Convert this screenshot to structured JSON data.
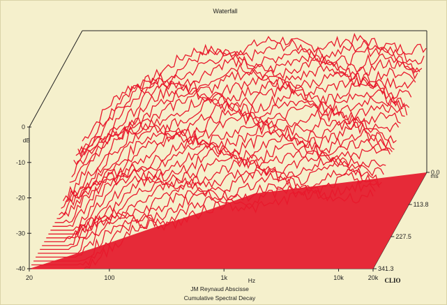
{
  "chart_data": {
    "type": "waterfall",
    "title": "Waterfall",
    "xlabel": "Hz",
    "zlabel": "ms",
    "ylabel": "dB",
    "caption_line1": "JM Reynaud Abscisse",
    "caption_line2": "Cumulative Spectral Decay",
    "brand": "CLIO",
    "x_scale": "log",
    "xlim": [
      20,
      20000
    ],
    "ylim": [
      -40,
      0
    ],
    "zlim": [
      0,
      341.3
    ],
    "y_ticks": [
      {
        "value": 0,
        "label": "0"
      },
      {
        "value": -10,
        "label": "-10"
      },
      {
        "value": -20,
        "label": "-20"
      },
      {
        "value": -30,
        "label": "-30"
      },
      {
        "value": -40,
        "label": "-40"
      }
    ],
    "x_ticks": [
      {
        "value": 20,
        "label": "20"
      },
      {
        "value": 100,
        "label": "100"
      },
      {
        "value": 1000,
        "label": "1k"
      },
      {
        "value": 10000,
        "label": "10k"
      },
      {
        "value": 20000,
        "label": "20k"
      }
    ],
    "z_ticks": [
      {
        "value": 0,
        "label": "0.0"
      },
      {
        "value": 113.8,
        "label": "113.8"
      },
      {
        "value": 227.5,
        "label": "227.5"
      },
      {
        "value": 341.3,
        "label": "341.3"
      }
    ],
    "slices": 26,
    "series_shape": [
      {
        "f": 20,
        "db": -30
      },
      {
        "f": 50,
        "db": -17
      },
      {
        "f": 100,
        "db": -10
      },
      {
        "f": 200,
        "db": -7
      },
      {
        "f": 500,
        "db": -4
      },
      {
        "f": 1000,
        "db": -4
      },
      {
        "f": 2000,
        "db": -3
      },
      {
        "f": 5000,
        "db": -4
      },
      {
        "f": 10000,
        "db": -3
      },
      {
        "f": 20000,
        "db": -6
      }
    ],
    "colors": {
      "background": "#f5f0cc",
      "curve": "#e8192c",
      "fill": "#e62a38",
      "frame": "#222222"
    }
  }
}
